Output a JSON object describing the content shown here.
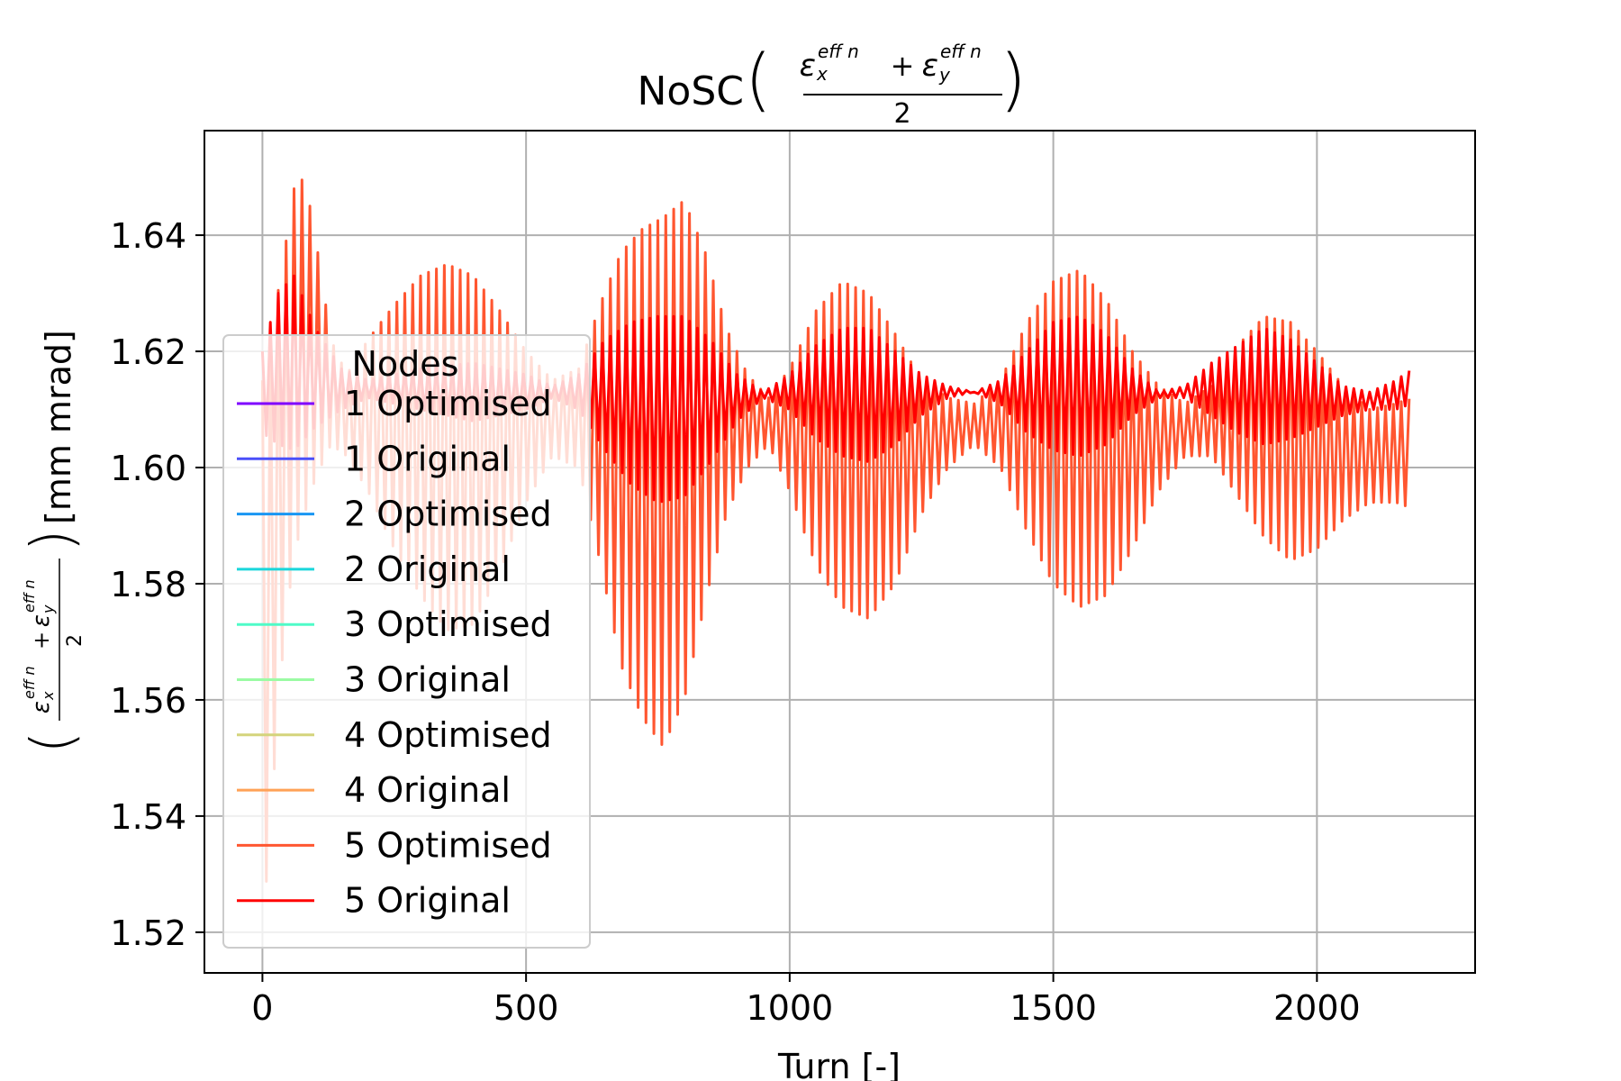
{
  "chart_data": {
    "type": "line",
    "title": "NoSC",
    "title_math": {
      "open_paren": "(",
      "close_paren": ")",
      "eps": "ε",
      "sub_x": "x",
      "sub_y": "y",
      "sup": "eff n",
      "plus": "+",
      "denominator": "2"
    },
    "xlabel": "Turn [-]",
    "ylabel_unit": "[mm mrad]",
    "xlim": [
      -110,
      2300
    ],
    "ylim": [
      1.513,
      1.658
    ],
    "xticks": [
      0,
      500,
      1000,
      1500,
      2000
    ],
    "xtick_labels": [
      "0",
      "500",
      "1000",
      "1500",
      "2000"
    ],
    "yticks": [
      1.52,
      1.54,
      1.56,
      1.58,
      1.6,
      1.62,
      1.64
    ],
    "ytick_labels": [
      "1.52",
      "1.54",
      "1.56",
      "1.58",
      "1.60",
      "1.62",
      "1.64"
    ],
    "grid": true,
    "legend": {
      "title": "Nodes",
      "placement": "center-left",
      "entries": [
        {
          "label": "1 Optimised",
          "color": "#7f00ff"
        },
        {
          "label": "1 Original",
          "color": "#4a4ff9"
        },
        {
          "label": "2 Optimised",
          "color": "#1996f3"
        },
        {
          "label": "2 Original",
          "color": "#1ad6db"
        },
        {
          "label": "3 Optimised",
          "color": "#4ffbc8"
        },
        {
          "label": "3 Original",
          "color": "#9bfba4"
        },
        {
          "label": "4 Optimised",
          "color": "#d4d47c"
        },
        {
          "label": "4 Original",
          "color": "#ffa256"
        },
        {
          "label": "5 Optimised",
          "color": "#ff5630"
        },
        {
          "label": "5 Original",
          "color": "#ff0000"
        }
      ]
    },
    "series": [
      {
        "name": "5 Optimised",
        "color": "#ff5630",
        "x_range": [
          0,
          2180
        ],
        "upper_envelope": {
          "x": [
            0,
            20,
            40,
            60,
            80,
            100,
            130,
            160,
            200,
            250,
            300,
            350,
            400,
            450,
            500,
            550,
            600,
            640,
            680,
            720,
            760,
            800,
            840,
            880,
            920,
            960,
            1000,
            1050,
            1100,
            1150,
            1200,
            1250,
            1300,
            1350,
            1400,
            1450,
            1500,
            1550,
            1600,
            1650,
            1700,
            1750,
            1800,
            1850,
            1900,
            1950,
            2000,
            2050,
            2100,
            2150,
            2180
          ],
          "y": [
            1.615,
            1.625,
            1.636,
            1.648,
            1.65,
            1.64,
            1.622,
            1.616,
            1.622,
            1.628,
            1.633,
            1.635,
            1.633,
            1.627,
            1.62,
            1.615,
            1.617,
            1.628,
            1.637,
            1.641,
            1.643,
            1.646,
            1.637,
            1.624,
            1.616,
            1.612,
            1.617,
            1.627,
            1.632,
            1.63,
            1.623,
            1.615,
            1.612,
            1.611,
            1.615,
            1.625,
            1.632,
            1.634,
            1.629,
            1.62,
            1.614,
            1.611,
            1.614,
            1.621,
            1.626,
            1.625,
            1.62,
            1.614,
            1.61,
            1.611,
            1.612
          ]
        },
        "lower_envelope": {
          "x": [
            0,
            20,
            40,
            60,
            80,
            100,
            130,
            160,
            200,
            250,
            300,
            350,
            400,
            450,
            500,
            550,
            600,
            640,
            680,
            720,
            760,
            800,
            840,
            880,
            920,
            960,
            1000,
            1050,
            1100,
            1150,
            1200,
            1250,
            1300,
            1350,
            1400,
            1450,
            1500,
            1550,
            1600,
            1650,
            1700,
            1750,
            1800,
            1850,
            1900,
            1950,
            2000,
            2050,
            2100,
            2150,
            2180
          ],
          "y": [
            1.519,
            1.545,
            1.57,
            1.585,
            1.592,
            1.598,
            1.604,
            1.602,
            1.596,
            1.586,
            1.578,
            1.572,
            1.573,
            1.582,
            1.594,
            1.602,
            1.6,
            1.584,
            1.566,
            1.557,
            1.552,
            1.56,
            1.577,
            1.592,
            1.6,
            1.604,
            1.596,
            1.583,
            1.576,
            1.574,
            1.58,
            1.592,
            1.6,
            1.604,
            1.6,
            1.589,
            1.58,
            1.576,
            1.578,
            1.586,
            1.596,
            1.602,
            1.602,
            1.595,
            1.588,
            1.584,
            1.586,
            1.591,
            1.594,
            1.594,
            1.593
          ]
        }
      },
      {
        "name": "5 Original",
        "color": "#ff0000",
        "x_range": [
          0,
          2180
        ],
        "upper_envelope": {
          "x": [
            0,
            30,
            60,
            100,
            150,
            200,
            300,
            400,
            500,
            550,
            600,
            650,
            700,
            750,
            800,
            850,
            900,
            950,
            1000,
            1050,
            1100,
            1150,
            1200,
            1250,
            1300,
            1350,
            1400,
            1450,
            1500,
            1550,
            1600,
            1650,
            1700,
            1750,
            1800,
            1850,
            1900,
            1950,
            2000,
            2050,
            2100,
            2150,
            2180
          ],
          "y": [
            1.62,
            1.63,
            1.633,
            1.624,
            1.617,
            1.615,
            1.617,
            1.618,
            1.616,
            1.614,
            1.616,
            1.622,
            1.625,
            1.626,
            1.626,
            1.622,
            1.616,
            1.613,
            1.616,
            1.621,
            1.624,
            1.624,
            1.62,
            1.616,
            1.614,
            1.613,
            1.615,
            1.62,
            1.625,
            1.626,
            1.623,
            1.617,
            1.613,
            1.614,
            1.618,
            1.621,
            1.624,
            1.622,
            1.618,
            1.614,
            1.613,
            1.615,
            1.617
          ]
        },
        "lower_envelope": {
          "x": [
            0,
            30,
            60,
            100,
            150,
            200,
            300,
            400,
            500,
            550,
            600,
            650,
            700,
            750,
            800,
            850,
            900,
            950,
            1000,
            1050,
            1100,
            1150,
            1200,
            1250,
            1300,
            1350,
            1400,
            1450,
            1500,
            1550,
            1600,
            1650,
            1700,
            1750,
            1800,
            1850,
            1900,
            1950,
            2000,
            2050,
            2100,
            2150,
            2180
          ],
          "y": [
            1.606,
            1.604,
            1.603,
            1.607,
            1.61,
            1.612,
            1.61,
            1.608,
            1.61,
            1.612,
            1.61,
            1.603,
            1.597,
            1.594,
            1.595,
            1.601,
            1.608,
            1.612,
            1.61,
            1.605,
            1.602,
            1.601,
            1.604,
            1.609,
            1.612,
            1.613,
            1.611,
            1.606,
            1.603,
            1.602,
            1.604,
            1.609,
            1.612,
            1.612,
            1.609,
            1.606,
            1.604,
            1.605,
            1.607,
            1.609,
            1.61,
            1.61,
            1.611
          ]
        }
      }
    ]
  }
}
